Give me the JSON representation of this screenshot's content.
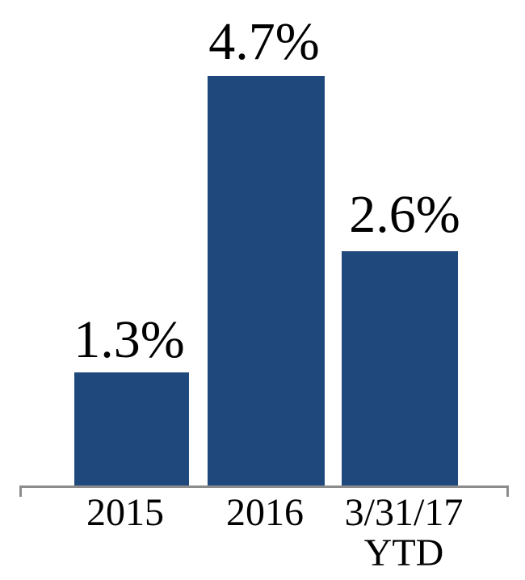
{
  "chart_data": {
    "type": "bar",
    "title": "",
    "categories": [
      "2015",
      "2016",
      "3/31/17 YTD"
    ],
    "values": [
      1.3,
      4.7,
      2.6
    ],
    "value_labels": [
      "1.3%",
      "4.7%",
      "2.6%"
    ],
    "x_ticks": [
      {
        "lines": [
          "2015"
        ]
      },
      {
        "lines": [
          "2016"
        ]
      },
      {
        "lines": [
          "3/31/17",
          "YTD"
        ]
      }
    ],
    "xlabel": "",
    "ylabel": "",
    "ylim": [
      0,
      5
    ],
    "grid": false,
    "legend": false,
    "y_axis_visible": false,
    "bar_color": "#1F497D",
    "axis_color": "#8C8C8C",
    "label_color": "#000000",
    "background_color": "#FFFFFF"
  }
}
